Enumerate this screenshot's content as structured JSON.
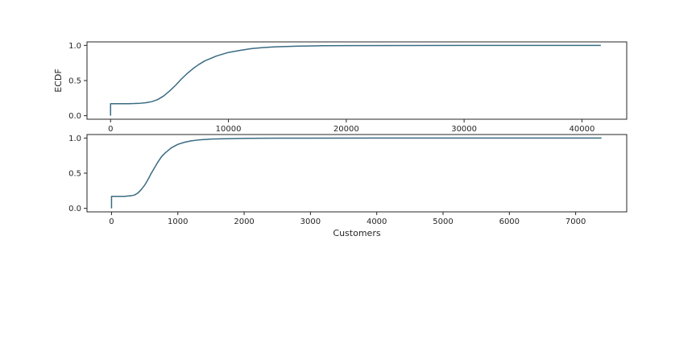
{
  "chart_data": [
    {
      "type": "line",
      "title": "",
      "xlabel": "",
      "ylabel": "ECDF",
      "xlim": [
        -2000,
        43800
      ],
      "ylim": [
        -0.05,
        1.05
      ],
      "xticks": [
        0,
        10000,
        20000,
        30000,
        40000
      ],
      "yticks": [
        0.0,
        0.5,
        1.0
      ],
      "xtick_labels": [
        "0",
        "10000",
        "20000",
        "30000",
        "40000"
      ],
      "ytick_labels": [
        "0.0",
        "0.5",
        "1.0"
      ],
      "grid": false,
      "legend": "none",
      "color": "#3a6b82",
      "series": [
        {
          "x": [
            0,
            0,
            500,
            1000,
            1500,
            2000,
            2500,
            3000,
            3500,
            4000,
            4500,
            5000,
            5500,
            6000,
            6500,
            7000,
            7500,
            8000,
            9000,
            10000,
            11000,
            12000,
            13000,
            14000,
            16000,
            18000,
            20000,
            25000,
            30000,
            35000,
            41600
          ],
          "y": [
            0.0,
            0.17,
            0.17,
            0.17,
            0.171,
            0.173,
            0.177,
            0.185,
            0.2,
            0.23,
            0.28,
            0.35,
            0.43,
            0.52,
            0.6,
            0.67,
            0.73,
            0.78,
            0.85,
            0.9,
            0.93,
            0.955,
            0.97,
            0.98,
            0.99,
            0.995,
            0.997,
            0.999,
            1.0,
            1.0,
            1.0
          ]
        }
      ]
    },
    {
      "type": "line",
      "title": "",
      "xlabel": "Customers",
      "ylabel": "",
      "xlim": [
        -370,
        7770
      ],
      "ylim": [
        -0.05,
        1.05
      ],
      "xticks": [
        0,
        1000,
        2000,
        3000,
        4000,
        5000,
        6000,
        7000
      ],
      "yticks": [
        0.0,
        0.5,
        1.0
      ],
      "xtick_labels": [
        "0",
        "1000",
        "2000",
        "3000",
        "4000",
        "5000",
        "6000",
        "7000"
      ],
      "ytick_labels": [
        "0.0",
        "0.5",
        "1.0"
      ],
      "grid": false,
      "legend": "none",
      "color": "#3a6b82",
      "series": [
        {
          "x": [
            0,
            0,
            100,
            200,
            300,
            350,
            400,
            450,
            500,
            550,
            600,
            650,
            700,
            750,
            800,
            900,
            1000,
            1100,
            1200,
            1300,
            1500,
            1700,
            2000,
            2500,
            3000,
            4000,
            5000,
            6000,
            7390
          ],
          "y": [
            0.0,
            0.17,
            0.17,
            0.17,
            0.18,
            0.19,
            0.22,
            0.27,
            0.33,
            0.41,
            0.5,
            0.58,
            0.66,
            0.73,
            0.78,
            0.86,
            0.91,
            0.94,
            0.96,
            0.972,
            0.985,
            0.99,
            0.995,
            0.998,
            0.999,
            1.0,
            1.0,
            1.0,
            1.0
          ]
        }
      ]
    }
  ]
}
